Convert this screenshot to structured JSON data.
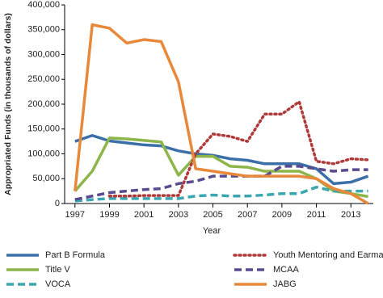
{
  "chart_data": {
    "type": "line",
    "y_label": "Appropriated Funds (in thousands of dollars)",
    "x_label": "Year",
    "x": [
      1997,
      1998,
      1999,
      2000,
      2001,
      2002,
      2003,
      2004,
      2005,
      2006,
      2007,
      2008,
      2009,
      2010,
      2011,
      2012,
      2013,
      2014
    ],
    "xlim": [
      1996.4,
      2014.3
    ],
    "xticks": [
      1997,
      1999,
      2001,
      2003,
      2005,
      2007,
      2009,
      2011,
      2013
    ],
    "ylim": [
      0,
      400000
    ],
    "yticks": [
      0,
      {
        "value": 50000,
        "label": "50,000"
      },
      {
        "value": 100000,
        "label": "100,000"
      },
      {
        "value": 150000,
        "label": "150,000"
      },
      {
        "value": 200000,
        "label": "200,000"
      },
      {
        "value": 250000,
        "label": "250,000"
      },
      {
        "value": 300000,
        "label": "300,000"
      },
      {
        "value": 350000,
        "label": "350,000"
      },
      {
        "value": 400000,
        "label": "400,000"
      }
    ],
    "series": [
      {
        "name": "Part B Formula",
        "color": "#3a6fa8",
        "style": "solid",
        "values": [
          125000,
          137000,
          126000,
          122000,
          118000,
          116000,
          106000,
          100000,
          97000,
          90000,
          87000,
          80000,
          80000,
          80000,
          70000,
          40000,
          43000,
          55000
        ]
      },
      {
        "name": "Title V",
        "color": "#8cb54a",
        "style": "solid",
        "values": [
          25000,
          65000,
          132000,
          130000,
          127000,
          124000,
          57000,
          95000,
          95000,
          75000,
          73000,
          65000,
          65000,
          65000,
          50000,
          25000,
          20000,
          14000
        ]
      },
      {
        "name": "VOCA",
        "color": "#3aa6b0",
        "style": "dashed",
        "values": [
          5000,
          8000,
          10000,
          10000,
          10000,
          10000,
          10000,
          15000,
          17000,
          15000,
          15000,
          17000,
          20000,
          20000,
          33000,
          25000,
          25000,
          25000
        ]
      },
      {
        "name": "Youth Mentoring and Earmarks",
        "color": "#b03a3a",
        "style": "dotted",
        "values": [
          null,
          null,
          15000,
          15000,
          16000,
          16000,
          16000,
          100000,
          140000,
          135000,
          125000,
          180000,
          180000,
          205000,
          85000,
          80000,
          90000,
          88000
        ]
      },
      {
        "name": "MCAA",
        "color": "#5a4a8e",
        "style": "dashed",
        "values": [
          8000,
          15000,
          22000,
          25000,
          28000,
          30000,
          40000,
          45000,
          55000,
          55000,
          55000,
          55000,
          75000,
          75000,
          70000,
          65000,
          68000,
          68000
        ]
      },
      {
        "name": "JABG",
        "color": "#e8883a",
        "style": "solid",
        "values": [
          25000,
          360000,
          353000,
          323000,
          330000,
          326000,
          245000,
          70000,
          65000,
          60000,
          55000,
          55000,
          55000,
          55000,
          50000,
          30000,
          20000,
          0
        ]
      }
    ]
  }
}
